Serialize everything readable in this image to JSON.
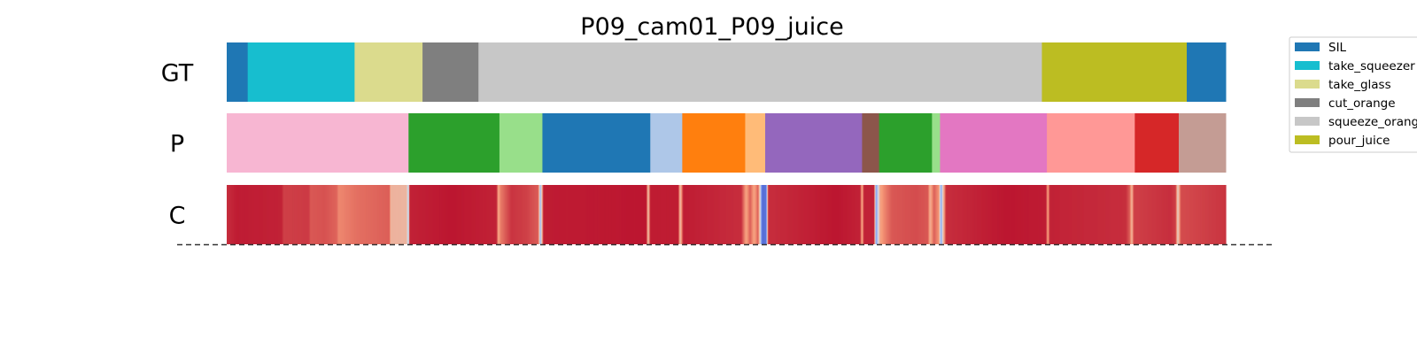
{
  "chart_data": {
    "type": "segmentation_timeline",
    "title": "P09_cam01_P09_juice",
    "x_range": [
      0,
      1000
    ],
    "rows": [
      {
        "label": "GT",
        "segments": [
          {
            "start": 0,
            "end": 21,
            "label": "SIL",
            "color": "#1f77b4"
          },
          {
            "start": 21,
            "end": 128,
            "label": "take_squeezer",
            "color": "#17becf"
          },
          {
            "start": 128,
            "end": 196,
            "label": "take_glass",
            "color": "#dbdb8d"
          },
          {
            "start": 196,
            "end": 252,
            "label": "cut_orange",
            "color": "#7f7f7f"
          },
          {
            "start": 252,
            "end": 816,
            "label": "squeeze_orange",
            "color": "#c7c7c7"
          },
          {
            "start": 816,
            "end": 961,
            "label": "pour_juice",
            "color": "#bcbd22"
          },
          {
            "start": 961,
            "end": 1000,
            "label": "SIL",
            "color": "#1f77b4"
          }
        ]
      },
      {
        "label": "P",
        "segments": [
          {
            "start": 0,
            "end": 182,
            "color": "#f7b6d2"
          },
          {
            "start": 182,
            "end": 273,
            "color": "#2ca02c"
          },
          {
            "start": 273,
            "end": 316,
            "color": "#98df8a"
          },
          {
            "start": 316,
            "end": 424,
            "color": "#1f77b4"
          },
          {
            "start": 424,
            "end": 456,
            "color": "#aec7e8"
          },
          {
            "start": 456,
            "end": 519,
            "color": "#ff7f0e"
          },
          {
            "start": 519,
            "end": 539,
            "color": "#ffbb78"
          },
          {
            "start": 539,
            "end": 636,
            "color": "#9467bd"
          },
          {
            "start": 636,
            "end": 653,
            "color": "#8c564b"
          },
          {
            "start": 653,
            "end": 706,
            "color": "#2ca02c"
          },
          {
            "start": 706,
            "end": 714,
            "color": "#98df8a"
          },
          {
            "start": 714,
            "end": 821,
            "color": "#e377c2"
          },
          {
            "start": 821,
            "end": 909,
            "color": "#ff9896"
          },
          {
            "start": 909,
            "end": 953,
            "color": "#d62728"
          },
          {
            "start": 953,
            "end": 1000,
            "color": "#c49c94"
          }
        ]
      },
      {
        "label": "C",
        "colormap": "coolwarm",
        "stops": [
          {
            "x": 0,
            "v": 0.93
          },
          {
            "x": 10,
            "v": 0.96
          },
          {
            "x": 55,
            "v": 0.95
          },
          {
            "x": 57,
            "v": 0.9
          },
          {
            "x": 82,
            "v": 0.91
          },
          {
            "x": 84,
            "v": 0.86
          },
          {
            "x": 98,
            "v": 0.87
          },
          {
            "x": 110,
            "v": 0.84
          },
          {
            "x": 112,
            "v": 0.78
          },
          {
            "x": 130,
            "v": 0.82
          },
          {
            "x": 163,
            "v": 0.85
          },
          {
            "x": 164,
            "v": 0.66
          },
          {
            "x": 180,
            "v": 0.65
          },
          {
            "x": 182,
            "v": 0.35
          },
          {
            "x": 183,
            "v": 0.95
          },
          {
            "x": 225,
            "v": 0.97
          },
          {
            "x": 270,
            "v": 0.95
          },
          {
            "x": 272,
            "v": 0.7
          },
          {
            "x": 274,
            "v": 0.8
          },
          {
            "x": 285,
            "v": 0.92
          },
          {
            "x": 300,
            "v": 0.9
          },
          {
            "x": 312,
            "v": 0.85
          },
          {
            "x": 314,
            "v": 0.3
          },
          {
            "x": 317,
            "v": 0.96
          },
          {
            "x": 420,
            "v": 0.97
          },
          {
            "x": 422,
            "v": 0.6
          },
          {
            "x": 424,
            "v": 0.96
          },
          {
            "x": 452,
            "v": 0.96
          },
          {
            "x": 454,
            "v": 0.62
          },
          {
            "x": 457,
            "v": 0.96
          },
          {
            "x": 515,
            "v": 0.93
          },
          {
            "x": 520,
            "v": 0.72
          },
          {
            "x": 524,
            "v": 0.85
          },
          {
            "x": 528,
            "v": 0.72
          },
          {
            "x": 532,
            "v": 0.85
          },
          {
            "x": 534,
            "v": 0.5
          },
          {
            "x": 536,
            "v": 0.1
          },
          {
            "x": 540,
            "v": 0.12
          },
          {
            "x": 542,
            "v": 0.93
          },
          {
            "x": 610,
            "v": 0.97
          },
          {
            "x": 634,
            "v": 0.95
          },
          {
            "x": 636,
            "v": 0.7
          },
          {
            "x": 638,
            "v": 0.95
          },
          {
            "x": 648,
            "v": 0.95
          },
          {
            "x": 650,
            "v": 0.25
          },
          {
            "x": 652,
            "v": 0.45
          },
          {
            "x": 654,
            "v": 0.72
          },
          {
            "x": 658,
            "v": 0.78
          },
          {
            "x": 666,
            "v": 0.86
          },
          {
            "x": 690,
            "v": 0.88
          },
          {
            "x": 702,
            "v": 0.86
          },
          {
            "x": 704,
            "v": 0.68
          },
          {
            "x": 708,
            "v": 0.85
          },
          {
            "x": 713,
            "v": 0.75
          },
          {
            "x": 715,
            "v": 0.25
          },
          {
            "x": 717,
            "v": 0.6
          },
          {
            "x": 720,
            "v": 0.93
          },
          {
            "x": 780,
            "v": 0.97
          },
          {
            "x": 820,
            "v": 0.96
          },
          {
            "x": 822,
            "v": 0.72
          },
          {
            "x": 824,
            "v": 0.95
          },
          {
            "x": 900,
            "v": 0.93
          },
          {
            "x": 904,
            "v": 0.85
          },
          {
            "x": 906,
            "v": 0.65
          },
          {
            "x": 908,
            "v": 0.9
          },
          {
            "x": 945,
            "v": 0.93
          },
          {
            "x": 950,
            "v": 0.9
          },
          {
            "x": 952,
            "v": 0.55
          },
          {
            "x": 955,
            "v": 0.88
          },
          {
            "x": 1000,
            "v": 0.92
          }
        ]
      }
    ],
    "baseline": {
      "style": "dashed",
      "color": "#333333"
    },
    "legend": {
      "placement": "right",
      "entries": [
        {
          "label": "SIL",
          "color": "#1f77b4"
        },
        {
          "label": "take_squeezer",
          "color": "#17becf"
        },
        {
          "label": "take_glass",
          "color": "#dbdb8d"
        },
        {
          "label": "cut_orange",
          "color": "#7f7f7f"
        },
        {
          "label": "squeeze_orange",
          "color": "#c7c7c7"
        },
        {
          "label": "pour_juice",
          "color": "#bcbd22"
        }
      ]
    }
  }
}
